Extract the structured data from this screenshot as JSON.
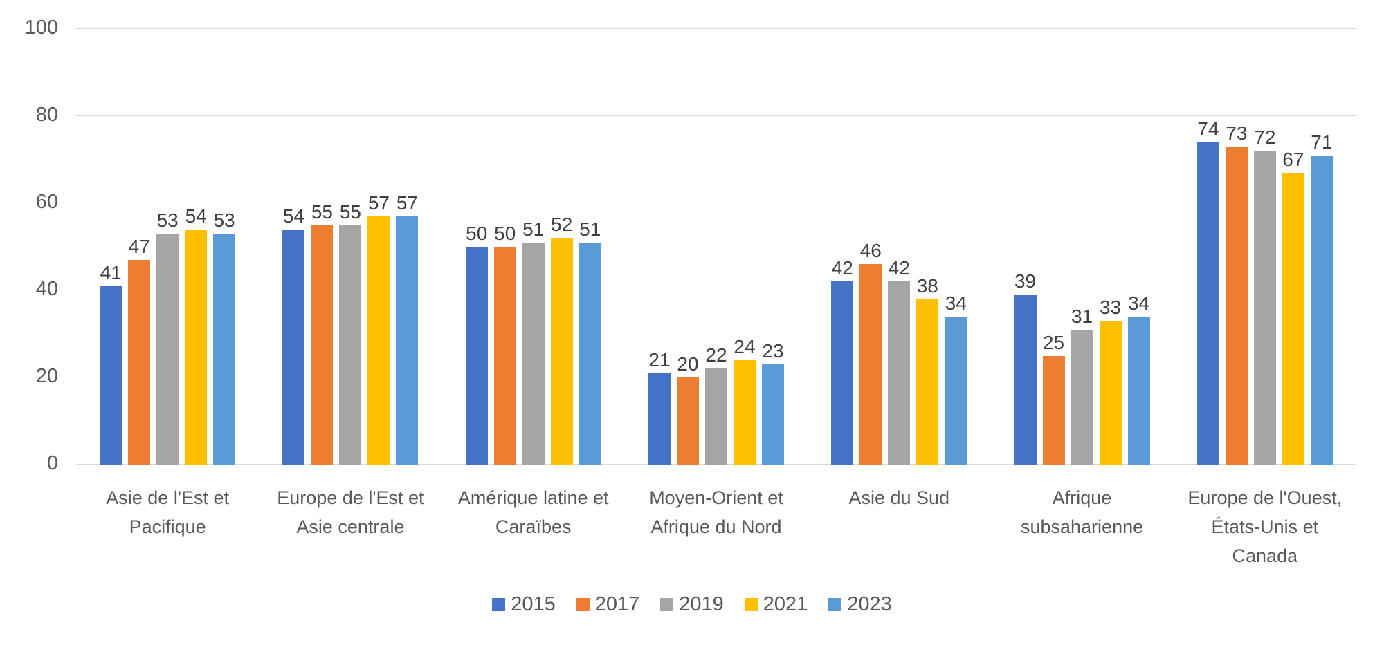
{
  "chart_data": {
    "type": "bar",
    "title": "",
    "categories": [
      "Asie de l'Est et Pacifique",
      "Europe de l'Est et Asie centrale",
      "Amérique latine et Caraïbes",
      "Moyen-Orient et Afrique du Nord",
      "Asie du Sud",
      "Afrique subsaharienne",
      "Europe de l'Ouest, États-Unis et Canada"
    ],
    "series": [
      {
        "name": "2015",
        "color": "#4472C4",
        "values": [
          41,
          54,
          50,
          21,
          42,
          39,
          74
        ]
      },
      {
        "name": "2017",
        "color": "#ED7D31",
        "values": [
          47,
          55,
          50,
          20,
          46,
          25,
          73
        ]
      },
      {
        "name": "2019",
        "color": "#A5A5A5",
        "values": [
          53,
          55,
          51,
          22,
          42,
          31,
          72
        ]
      },
      {
        "name": "2021",
        "color": "#FFC000",
        "values": [
          54,
          57,
          52,
          24,
          38,
          33,
          67
        ]
      },
      {
        "name": "2023",
        "color": "#5B9BD5",
        "values": [
          53,
          57,
          51,
          23,
          34,
          34,
          71
        ]
      }
    ],
    "y_ticks": [
      0,
      20,
      40,
      60,
      80,
      100
    ],
    "ylim": [
      0,
      100
    ],
    "grid": true,
    "data_labels": true,
    "legend_position": "bottom",
    "colors": {
      "gridline": "#D9D9D9",
      "tick_text": "#595959",
      "data_label": "#404040",
      "category_text": "#595959",
      "legend_text": "#595959",
      "background": "#FFFFFF"
    }
  }
}
